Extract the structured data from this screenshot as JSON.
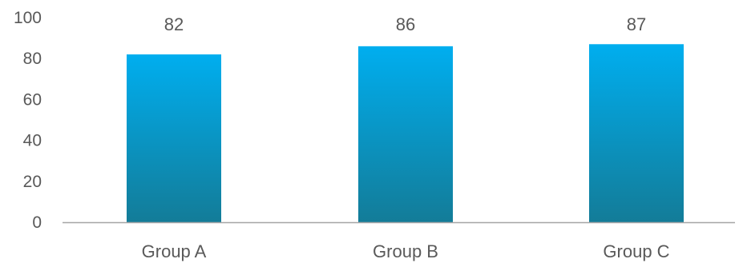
{
  "chart_data": {
    "type": "bar",
    "title": "",
    "xlabel": "",
    "ylabel": "",
    "categories": [
      "Group A",
      "Group B",
      "Group C"
    ],
    "values": [
      82,
      86,
      87
    ],
    "data_labels": [
      "82",
      "86",
      "87"
    ],
    "ylim": [
      0,
      100
    ],
    "yticks": [
      0,
      20,
      40,
      60,
      80,
      100
    ],
    "ytick_labels": [
      "0",
      "20",
      "40",
      "60",
      "80",
      "100"
    ],
    "grid": false,
    "legend": "none",
    "colors": {
      "bar_top": "#00AEEF",
      "bar_bottom": "#137C98",
      "axis": "#A6A6A6",
      "text": "#595959"
    }
  }
}
